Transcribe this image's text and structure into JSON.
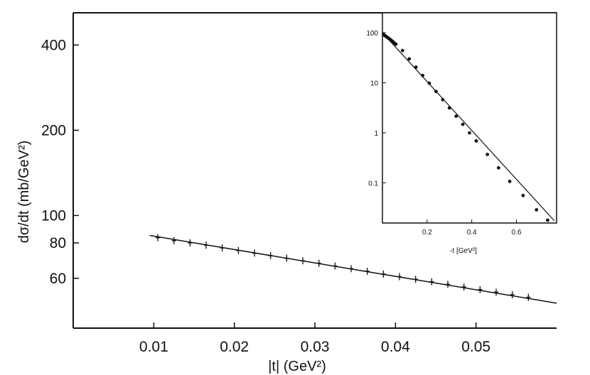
{
  "chart_data": [
    {
      "type": "scatter",
      "xlabel": "|t|  (GeV²)",
      "ylabel": "dσ/dt (mb/GeV²)",
      "y_scale": "log",
      "xlim": [
        0.0,
        0.06
      ],
      "ylim": [
        40,
        520
      ],
      "x_ticks": [
        0.01,
        0.02,
        0.03,
        0.04,
        0.05
      ],
      "x_tick_labels": [
        "0.01",
        "0.02",
        "0.03",
        "0.04",
        "0.05"
      ],
      "y_ticks": [
        60,
        80,
        100,
        200,
        400
      ],
      "y_tick_labels": [
        "60",
        "80",
        "100",
        "200",
        "400"
      ],
      "series": [
        {
          "x": [
            0.0105,
            0.0125,
            0.0145,
            0.0165,
            0.0185,
            0.0205,
            0.0225,
            0.0245,
            0.0265,
            0.0285,
            0.0305,
            0.0325,
            0.0345,
            0.0365,
            0.0385,
            0.0405,
            0.0425,
            0.0445,
            0.0465,
            0.0485,
            0.0505,
            0.0525,
            0.0545,
            0.0565
          ],
          "y": [
            83.5,
            81.5,
            80.0,
            78.5,
            76.8,
            75.2,
            73.6,
            72.1,
            70.6,
            69.2,
            67.8,
            66.3,
            64.9,
            63.5,
            62.1,
            60.8,
            59.5,
            58.3,
            57.1,
            55.9,
            54.7,
            53.6,
            52.5,
            51.4
          ]
        }
      ],
      "fit_line": {
        "x": [
          0.0095,
          0.06
        ],
        "y": [
          85,
          49
        ]
      }
    },
    {
      "type": "scatter",
      "xlabel": "-t [GeV²]",
      "ylabel": "",
      "y_scale": "log",
      "xlim": [
        0.0,
        0.78
      ],
      "ylim": [
        0.0158,
        250
      ],
      "x_ticks": [
        0.2,
        0.4,
        0.6
      ],
      "x_tick_labels": [
        "0.2",
        "0.4",
        "0.6"
      ],
      "y_ticks": [
        0.1,
        1,
        10,
        100
      ],
      "y_tick_labels": [
        "0.1",
        "1",
        "10",
        "100"
      ],
      "series": [
        {
          "x": [
            0.005,
            0.01,
            0.015,
            0.02,
            0.025,
            0.03,
            0.035,
            0.04,
            0.045,
            0.05,
            0.055,
            0.06,
            0.09,
            0.12,
            0.15,
            0.18,
            0.21,
            0.24,
            0.27,
            0.3,
            0.33,
            0.36,
            0.39,
            0.42,
            0.47,
            0.52,
            0.57,
            0.63,
            0.69,
            0.74
          ],
          "y": [
            92,
            88,
            85,
            82,
            79,
            76,
            73,
            70,
            67,
            64,
            61,
            59,
            44,
            30,
            20.5,
            14,
            9.8,
            6.7,
            4.6,
            3.15,
            2.15,
            1.48,
            1.0,
            0.69,
            0.37,
            0.2,
            0.107,
            0.056,
            0.029,
            0.018
          ]
        }
      ],
      "fit_line": {
        "x": [
          0.0,
          0.77
        ],
        "y": [
          100,
          0.0175
        ]
      }
    }
  ]
}
